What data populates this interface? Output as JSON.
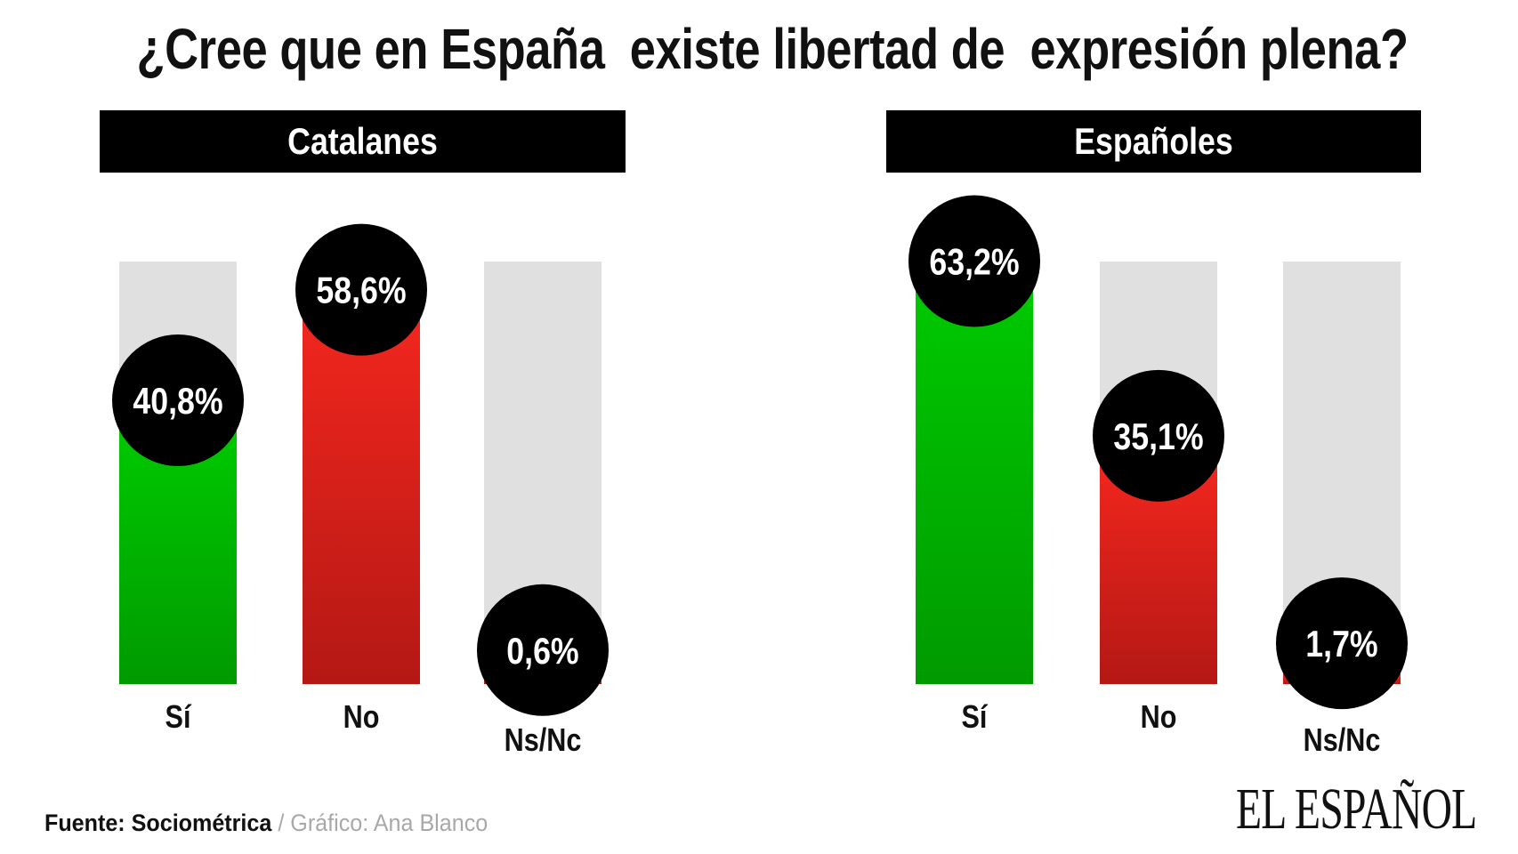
{
  "title": "¿Cree que en España  existe libertad de  expresión plena?",
  "footer": {
    "source": "Fuente: Sociométrica",
    "separator": " / ",
    "credit": "Gráfico: Ana Blanco"
  },
  "logo": "EL ESPAÑOL",
  "colors": {
    "si": "#00c800",
    "si_dark": "#009a00",
    "no": "#f0261e",
    "no_dark": "#b41814",
    "track": "#e0e0e0",
    "bubble": "#000000",
    "header": "#000000"
  },
  "chart_data": [
    {
      "type": "bar",
      "title": "Catalanes",
      "categories": [
        "Sí",
        "No",
        "Ns/Nc"
      ],
      "values": [
        40.8,
        58.6,
        0.6
      ],
      "value_labels": [
        "40,8%",
        "58,6%",
        "0,6%"
      ],
      "ylim": [
        0,
        68
      ]
    },
    {
      "type": "bar",
      "title": "Españoles",
      "categories": [
        "Sí",
        "No",
        "Ns/Nc"
      ],
      "values": [
        63.2,
        35.1,
        1.7
      ],
      "value_labels": [
        "63,2%",
        "35,1%",
        "1,7%"
      ],
      "ylim": [
        0,
        68
      ]
    }
  ]
}
